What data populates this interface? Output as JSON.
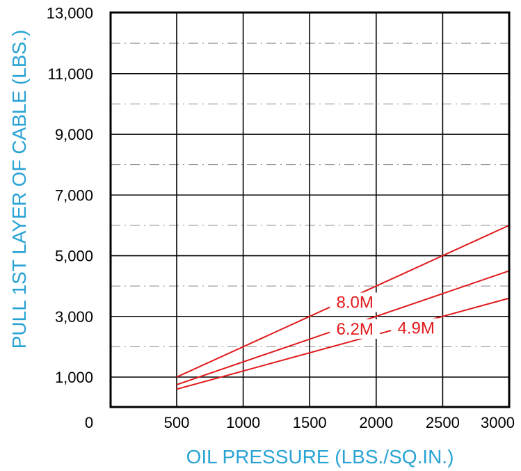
{
  "colors": {
    "axis_title": "#29a3d4",
    "series": "#e0191b",
    "grid_major": "#000000",
    "grid_minor": "#888888",
    "frame": "#000000"
  },
  "chart_data": {
    "type": "line",
    "title": "",
    "xlabel": "OIL PRESSURE (LBS./SQ.IN.)",
    "ylabel": "PULL 1ST LAYER OF CABLE (LBS.)",
    "xlim": [
      0,
      3000
    ],
    "ylim": [
      0,
      13000
    ],
    "x_ticks": [
      500,
      1000,
      1500,
      2000,
      2500,
      3000
    ],
    "x_tick_labels": [
      "500",
      "1000",
      "1500",
      "2000",
      "2500",
      "3000"
    ],
    "y_ticks": [
      1000,
      3000,
      5000,
      7000,
      9000,
      11000,
      13000
    ],
    "y_tick_labels": [
      "1,000",
      "3,000",
      "5,000",
      "7,000",
      "9,000",
      "11,000",
      "13,000"
    ],
    "origin_label": "0",
    "minor_y_gridlines": [
      2000,
      4000,
      6000,
      8000,
      10000,
      12000
    ],
    "grid": true,
    "legend": "none",
    "series": [
      {
        "name": "8.0M",
        "x": [
          500,
          3000
        ],
        "y": [
          1000,
          6000
        ]
      },
      {
        "name": "6.2M",
        "x": [
          500,
          3000
        ],
        "y": [
          750,
          4500
        ]
      },
      {
        "name": "4.9M",
        "x": [
          500,
          3000
        ],
        "y": [
          600,
          3600
        ]
      }
    ]
  }
}
